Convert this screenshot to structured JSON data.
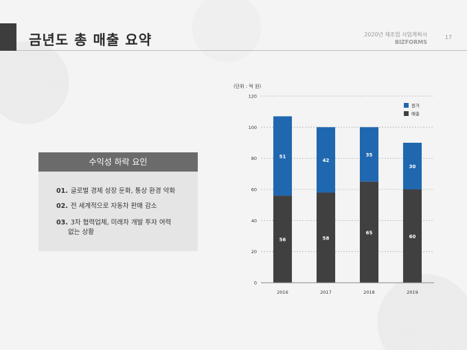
{
  "header": {
    "title": "금년도 총 매출 요약",
    "doc_title": "2020년 제조업 사업계획서",
    "brand": "BIZFORMS",
    "page_number": "17"
  },
  "panel": {
    "heading": "수익성 하락 요인",
    "items": [
      {
        "num": "01.",
        "text": "글로벌 경제 성장 둔화, 통상 환경 악화",
        "text2": ""
      },
      {
        "num": "02.",
        "text": "전 세계적으로 자동차 판매 감소",
        "text2": ""
      },
      {
        "num": "03.",
        "text": "3차 협력업체, 미래차 개발 투자 여력",
        "text2": "없는 상황"
      }
    ]
  },
  "chart_data": {
    "type": "bar",
    "stacked": true,
    "unit_label": "(단위 : 억 원)",
    "categories": [
      "2016",
      "2017",
      "2018",
      "2019"
    ],
    "series": [
      {
        "name": "매출",
        "color": "#404040",
        "values": [
          56,
          58,
          65,
          60
        ]
      },
      {
        "name": "원가",
        "color": "#1f68b0",
        "values": [
          51,
          42,
          35,
          30
        ]
      }
    ],
    "ylim": [
      0,
      120
    ],
    "yticks": [
      0,
      20,
      40,
      60,
      80,
      100,
      120
    ],
    "grid": true,
    "legend": "top-right"
  }
}
